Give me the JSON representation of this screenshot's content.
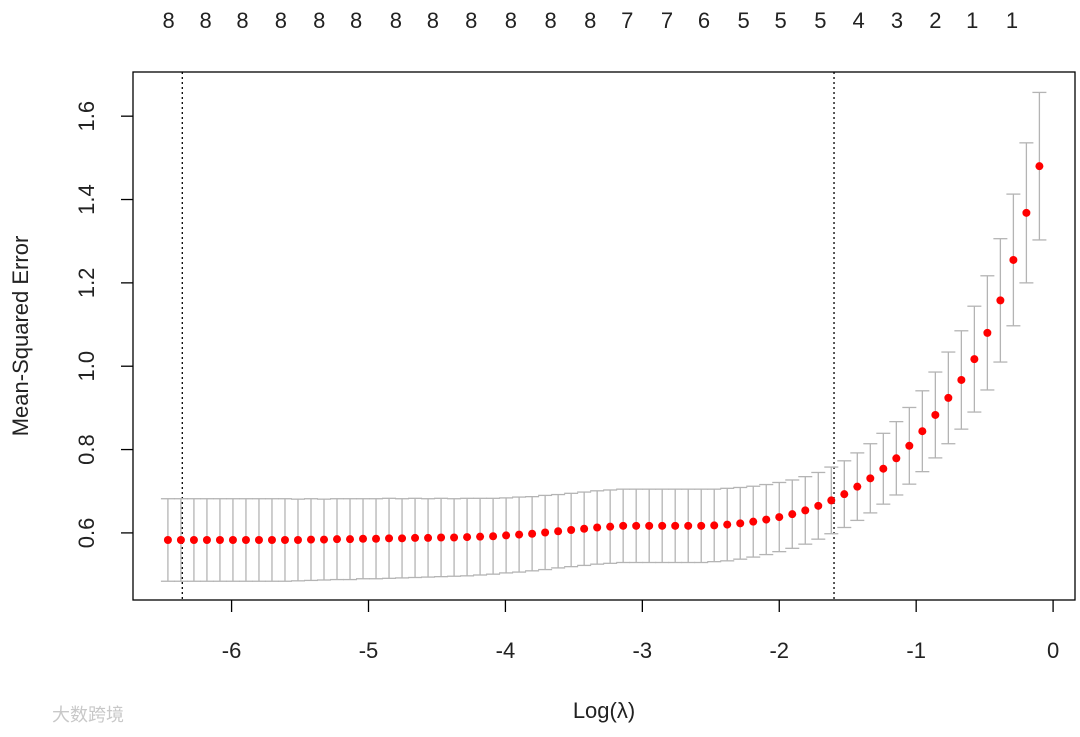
{
  "chart_data": {
    "type": "errorbar-scatter",
    "xlabel": "Log(λ)",
    "ylabel": "Mean-Squared Error",
    "xlim": [
      -6.72,
      0.16
    ],
    "ylim": [
      0.439,
      1.706
    ],
    "xticks": [
      -6,
      -5,
      -4,
      -3,
      -2,
      -1,
      0
    ],
    "yticks": [
      {
        "value": 0.6,
        "label": "0.6"
      },
      {
        "value": 0.8,
        "label": "0.8"
      },
      {
        "value": 1.0,
        "label": "1.0"
      },
      {
        "value": 1.2,
        "label": "1.2"
      },
      {
        "value": 1.4,
        "label": "1.4"
      },
      {
        "value": 1.6,
        "label": "1.6"
      }
    ],
    "top_ticks": [
      {
        "value": -6.46,
        "label": "8"
      },
      {
        "value": -6.19,
        "label": "8"
      },
      {
        "value": -5.92,
        "label": "8"
      },
      {
        "value": -5.64,
        "label": "8"
      },
      {
        "value": -5.36,
        "label": "8"
      },
      {
        "value": -5.09,
        "label": "8"
      },
      {
        "value": -4.8,
        "label": "8"
      },
      {
        "value": -4.53,
        "label": "8"
      },
      {
        "value": -4.25,
        "label": "8"
      },
      {
        "value": -3.96,
        "label": "8"
      },
      {
        "value": -3.67,
        "label": "8"
      },
      {
        "value": -3.38,
        "label": "8"
      },
      {
        "value": -3.11,
        "label": "7"
      },
      {
        "value": -2.82,
        "label": "7"
      },
      {
        "value": -2.55,
        "label": "6"
      },
      {
        "value": -2.26,
        "label": "5"
      },
      {
        "value": -1.99,
        "label": "5"
      },
      {
        "value": -1.7,
        "label": "5"
      },
      {
        "value": -1.42,
        "label": "4"
      },
      {
        "value": -1.14,
        "label": "3"
      },
      {
        "value": -0.86,
        "label": "2"
      },
      {
        "value": -0.59,
        "label": "1"
      },
      {
        "value": -0.3,
        "label": "1"
      }
    ],
    "vlines": [
      -6.36,
      -1.6
    ],
    "x": [
      -6.465,
      -6.37,
      -6.275,
      -6.18,
      -6.085,
      -5.99,
      -5.895,
      -5.8,
      -5.705,
      -5.61,
      -5.515,
      -5.42,
      -5.325,
      -5.23,
      -5.135,
      -5.04,
      -4.945,
      -4.85,
      -4.755,
      -4.66,
      -4.565,
      -4.47,
      -4.375,
      -4.28,
      -4.185,
      -4.09,
      -3.995,
      -3.9,
      -3.805,
      -3.71,
      -3.615,
      -3.52,
      -3.425,
      -3.33,
      -3.235,
      -3.14,
      -3.045,
      -2.95,
      -2.855,
      -2.76,
      -2.665,
      -2.57,
      -2.475,
      -2.38,
      -2.285,
      -2.19,
      -2.095,
      -2.0,
      -1.905,
      -1.81,
      -1.715,
      -1.62,
      -1.525,
      -1.43,
      -1.335,
      -1.24,
      -1.145,
      -1.05,
      -0.955,
      -0.86,
      -0.765,
      -0.67,
      -0.575,
      -0.48,
      -0.385,
      -0.29,
      -0.195,
      -0.1
    ],
    "series": [
      {
        "color": "#ff0000",
        "error_color": "#b4b4b4",
        "values": [
          0.583,
          0.583,
          0.583,
          0.583,
          0.583,
          0.583,
          0.583,
          0.583,
          0.583,
          0.583,
          0.583,
          0.584,
          0.584,
          0.585,
          0.585,
          0.586,
          0.586,
          0.587,
          0.587,
          0.588,
          0.588,
          0.589,
          0.589,
          0.59,
          0.591,
          0.592,
          0.594,
          0.596,
          0.598,
          0.601,
          0.604,
          0.607,
          0.61,
          0.613,
          0.615,
          0.617,
          0.617,
          0.617,
          0.617,
          0.617,
          0.617,
          0.617,
          0.618,
          0.62,
          0.623,
          0.627,
          0.632,
          0.638,
          0.645,
          0.654,
          0.665,
          0.678,
          0.693,
          0.711,
          0.731,
          0.754,
          0.779,
          0.809,
          0.844,
          0.883,
          0.924,
          0.967,
          1.017,
          1.08,
          1.158,
          1.255,
          1.368,
          1.48
        ],
        "errors": [
          0.099,
          0.099,
          0.099,
          0.099,
          0.099,
          0.099,
          0.099,
          0.099,
          0.099,
          0.099,
          0.098,
          0.098,
          0.097,
          0.097,
          0.097,
          0.096,
          0.096,
          0.096,
          0.095,
          0.095,
          0.094,
          0.094,
          0.093,
          0.093,
          0.092,
          0.091,
          0.09,
          0.09,
          0.089,
          0.089,
          0.088,
          0.088,
          0.088,
          0.088,
          0.088,
          0.088,
          0.088,
          0.088,
          0.088,
          0.088,
          0.088,
          0.088,
          0.087,
          0.087,
          0.086,
          0.085,
          0.084,
          0.083,
          0.082,
          0.081,
          0.08,
          0.08,
          0.08,
          0.081,
          0.083,
          0.085,
          0.088,
          0.092,
          0.097,
          0.103,
          0.11,
          0.118,
          0.127,
          0.137,
          0.148,
          0.158,
          0.168,
          0.177
        ]
      }
    ]
  },
  "watermark": "大数跨境"
}
